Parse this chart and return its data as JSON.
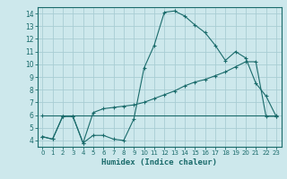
{
  "xlabel": "Humidex (Indice chaleur)",
  "ylabel": "",
  "background_color": "#cde8ec",
  "grid_color": "#a8cdd4",
  "line_color": "#1a6b6b",
  "xlim": [
    -0.5,
    23.5
  ],
  "ylim": [
    3.5,
    14.5
  ],
  "xticks": [
    0,
    1,
    2,
    3,
    4,
    5,
    6,
    7,
    8,
    9,
    10,
    11,
    12,
    13,
    14,
    15,
    16,
    17,
    18,
    19,
    20,
    21,
    22,
    23
  ],
  "yticks": [
    4,
    5,
    6,
    7,
    8,
    9,
    10,
    11,
    12,
    13,
    14
  ],
  "series": [
    {
      "x": [
        0,
        1,
        2,
        3,
        4,
        5,
        6,
        7,
        8,
        9,
        10,
        11,
        12,
        13,
        14,
        15,
        16,
        17,
        18,
        19,
        20,
        21,
        22,
        23
      ],
      "y": [
        4.3,
        4.1,
        5.9,
        5.9,
        3.8,
        4.4,
        4.4,
        4.1,
        4.0,
        5.7,
        9.7,
        11.5,
        14.1,
        14.2,
        13.8,
        13.1,
        12.5,
        11.5,
        10.3,
        11.0,
        10.5,
        8.5,
        7.5,
        5.9
      ]
    },
    {
      "x": [
        0,
        1,
        2,
        3,
        4,
        5,
        6,
        7,
        8,
        9,
        10,
        11,
        12,
        13,
        14,
        15,
        16,
        17,
        18,
        19,
        20,
        21,
        22,
        23
      ],
      "y": [
        4.3,
        4.1,
        5.9,
        5.9,
        3.8,
        6.2,
        6.5,
        6.6,
        6.7,
        6.8,
        7.0,
        7.3,
        7.6,
        7.9,
        8.3,
        8.6,
        8.8,
        9.1,
        9.4,
        9.8,
        10.2,
        10.2,
        5.9,
        5.9
      ]
    },
    {
      "x": [
        0,
        23
      ],
      "y": [
        6.0,
        6.0
      ]
    }
  ]
}
